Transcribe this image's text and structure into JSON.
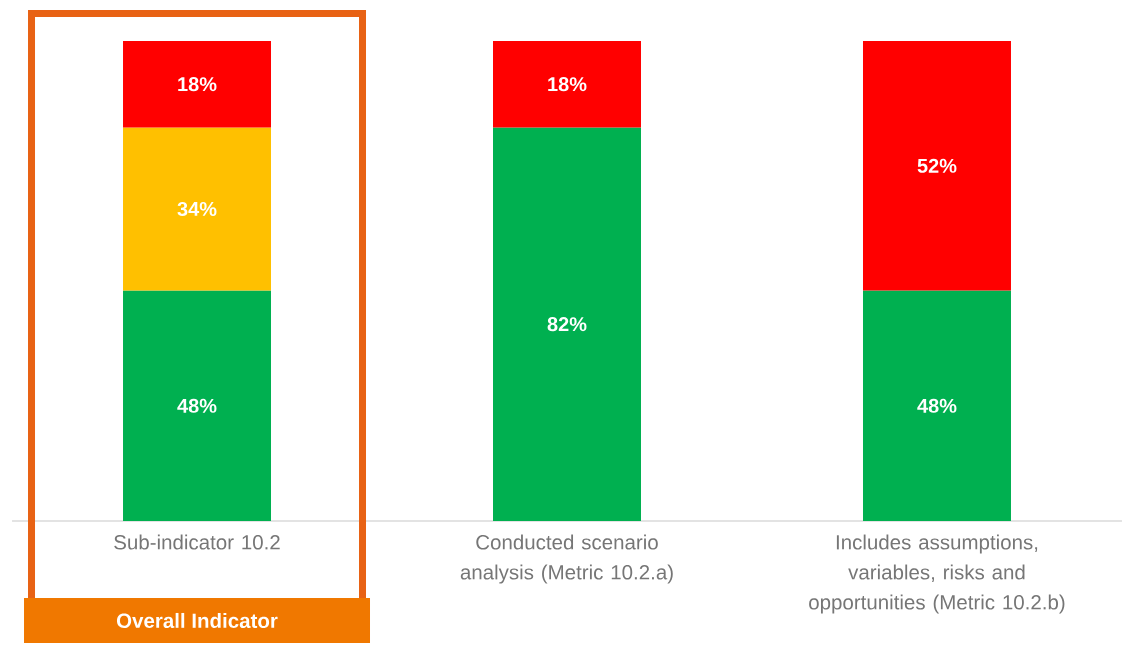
{
  "chart_data": {
    "type": "bar",
    "stacked": true,
    "categories": [
      "Sub-indicator 10.2",
      "Conducted scenario analysis (Metric 10.2.a)",
      "Includes assumptions, variables, risks and opportunities (Metric 10.2.b)"
    ],
    "series": [
      {
        "color": "#00b050",
        "values": [
          48,
          82,
          48
        ],
        "value_labels": [
          "48%",
          "82%",
          "48%"
        ]
      },
      {
        "color": "#ffc000",
        "values": [
          34,
          null,
          null
        ],
        "value_labels": [
          "34%",
          null,
          null
        ]
      },
      {
        "color": "#ff0000",
        "values": [
          18,
          18,
          52
        ],
        "value_labels": [
          "18%",
          "18%",
          "52%"
        ]
      }
    ],
    "annotations": [
      "Overall Indicator"
    ]
  }
}
